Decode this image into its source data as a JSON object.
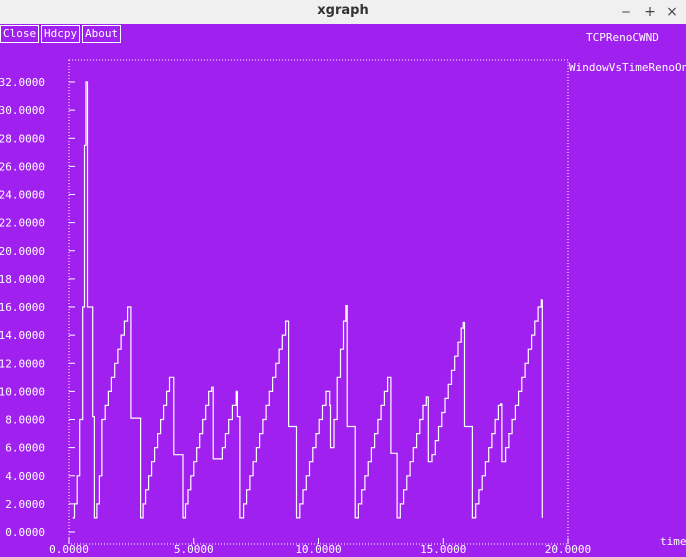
{
  "window": {
    "title": "xgraph"
  },
  "window_controls": {
    "minimize": "‒",
    "maximize": "+",
    "close": "×"
  },
  "toolbar": {
    "close_label": "Close",
    "hdcpy_label": "Hdcpy",
    "about_label": "About"
  },
  "graph": {
    "title": "TCPRenoCWND",
    "legend": "WindowVsTimeRenoOne",
    "xunit": "time"
  },
  "colors": {
    "background": "#a020f0",
    "foreground": "#ffffff"
  },
  "chart_data": {
    "type": "line",
    "title": "TCPRenoCWND",
    "xlabel": "time",
    "ylabel": "",
    "xlim": [
      0,
      20
    ],
    "ylim": [
      0,
      32
    ],
    "grid": true,
    "legend_position": "top-right",
    "x_ticks": [
      "0.0000",
      "5.0000",
      "10.0000",
      "15.0000",
      "20.0000"
    ],
    "y_ticks": [
      "0.0000",
      "2.0000",
      "4.0000",
      "6.0000",
      "8.0000",
      "10.0000",
      "12.0000",
      "14.0000",
      "16.0000",
      "18.0000",
      "20.0000",
      "22.0000",
      "24.0000",
      "26.0000",
      "28.0000",
      "30.0000",
      "32.0000"
    ],
    "series": [
      {
        "name": "WindowVsTimeRenoOne",
        "color": "#ffffff",
        "points": [
          [
            0.15,
            1
          ],
          [
            0.22,
            2
          ],
          [
            0.33,
            4
          ],
          [
            0.43,
            8
          ],
          [
            0.55,
            16
          ],
          [
            0.62,
            27.5
          ],
          [
            0.68,
            32
          ],
          [
            0.74,
            16
          ],
          [
            0.88,
            16
          ],
          [
            0.95,
            8.2
          ],
          [
            1.02,
            1
          ],
          [
            1.12,
            2
          ],
          [
            1.22,
            4
          ],
          [
            1.32,
            8
          ],
          [
            1.45,
            9
          ],
          [
            1.58,
            10
          ],
          [
            1.7,
            11
          ],
          [
            1.83,
            12
          ],
          [
            1.96,
            13
          ],
          [
            2.09,
            14
          ],
          [
            2.22,
            15
          ],
          [
            2.35,
            16
          ],
          [
            2.42,
            16
          ],
          [
            2.48,
            8.1
          ],
          [
            2.8,
            8.1
          ],
          [
            2.87,
            1
          ],
          [
            2.97,
            2
          ],
          [
            3.07,
            3
          ],
          [
            3.19,
            4
          ],
          [
            3.31,
            5
          ],
          [
            3.43,
            6
          ],
          [
            3.55,
            7
          ],
          [
            3.67,
            8
          ],
          [
            3.79,
            9
          ],
          [
            3.91,
            10
          ],
          [
            4.03,
            11
          ],
          [
            4.15,
            11
          ],
          [
            4.2,
            5.5
          ],
          [
            4.5,
            5.5
          ],
          [
            4.57,
            1
          ],
          [
            4.67,
            2
          ],
          [
            4.77,
            3
          ],
          [
            4.88,
            4
          ],
          [
            5.0,
            5
          ],
          [
            5.12,
            6
          ],
          [
            5.24,
            7
          ],
          [
            5.36,
            8
          ],
          [
            5.48,
            9
          ],
          [
            5.6,
            10
          ],
          [
            5.72,
            10.3
          ],
          [
            5.78,
            5.2
          ],
          [
            6.05,
            5.2
          ],
          [
            6.15,
            6
          ],
          [
            6.27,
            7
          ],
          [
            6.4,
            8
          ],
          [
            6.55,
            9
          ],
          [
            6.7,
            10
          ],
          [
            6.75,
            8.2
          ],
          [
            6.85,
            1
          ],
          [
            7.0,
            2
          ],
          [
            7.12,
            3
          ],
          [
            7.25,
            4
          ],
          [
            7.38,
            5
          ],
          [
            7.51,
            6
          ],
          [
            7.64,
            7
          ],
          [
            7.77,
            8
          ],
          [
            7.9,
            9
          ],
          [
            8.03,
            10
          ],
          [
            8.16,
            11
          ],
          [
            8.29,
            12
          ],
          [
            8.42,
            13
          ],
          [
            8.55,
            14
          ],
          [
            8.68,
            15
          ],
          [
            8.75,
            15
          ],
          [
            8.8,
            7.5
          ],
          [
            9.05,
            7.5
          ],
          [
            9.12,
            1
          ],
          [
            9.25,
            2
          ],
          [
            9.38,
            3
          ],
          [
            9.51,
            4
          ],
          [
            9.64,
            5
          ],
          [
            9.77,
            6
          ],
          [
            9.9,
            7
          ],
          [
            10.03,
            8
          ],
          [
            10.16,
            9
          ],
          [
            10.3,
            10
          ],
          [
            10.45,
            9
          ],
          [
            10.48,
            6
          ],
          [
            10.62,
            8
          ],
          [
            10.75,
            11
          ],
          [
            10.88,
            13
          ],
          [
            11.0,
            15
          ],
          [
            11.1,
            16.1
          ],
          [
            11.15,
            7.5
          ],
          [
            11.4,
            7.5
          ],
          [
            11.47,
            1
          ],
          [
            11.6,
            2
          ],
          [
            11.73,
            3
          ],
          [
            11.86,
            4
          ],
          [
            11.99,
            5
          ],
          [
            12.12,
            6
          ],
          [
            12.25,
            7
          ],
          [
            12.38,
            8
          ],
          [
            12.51,
            9
          ],
          [
            12.64,
            10
          ],
          [
            12.77,
            11
          ],
          [
            12.85,
            11
          ],
          [
            12.9,
            5.6
          ],
          [
            13.1,
            5.6
          ],
          [
            13.15,
            1
          ],
          [
            13.28,
            2
          ],
          [
            13.41,
            3
          ],
          [
            13.54,
            4
          ],
          [
            13.67,
            5
          ],
          [
            13.8,
            6
          ],
          [
            13.93,
            7
          ],
          [
            14.06,
            8
          ],
          [
            14.19,
            9
          ],
          [
            14.32,
            9.6
          ],
          [
            14.4,
            5
          ],
          [
            14.55,
            5.5
          ],
          [
            14.68,
            6.5
          ],
          [
            14.81,
            7.5
          ],
          [
            14.94,
            8.5
          ],
          [
            15.07,
            9.5
          ],
          [
            15.2,
            10.5
          ],
          [
            15.33,
            11.5
          ],
          [
            15.46,
            12.5
          ],
          [
            15.59,
            13.5
          ],
          [
            15.72,
            14.5
          ],
          [
            15.8,
            14.9
          ],
          [
            15.85,
            7.5
          ],
          [
            16.1,
            7.5
          ],
          [
            16.17,
            1
          ],
          [
            16.3,
            2
          ],
          [
            16.43,
            3
          ],
          [
            16.56,
            4
          ],
          [
            16.69,
            5
          ],
          [
            16.82,
            6
          ],
          [
            16.95,
            7
          ],
          [
            17.08,
            8
          ],
          [
            17.21,
            9
          ],
          [
            17.3,
            9.1
          ],
          [
            17.35,
            5
          ],
          [
            17.5,
            6
          ],
          [
            17.63,
            7
          ],
          [
            17.76,
            8
          ],
          [
            17.89,
            9
          ],
          [
            18.02,
            10
          ],
          [
            18.15,
            11
          ],
          [
            18.28,
            12
          ],
          [
            18.41,
            13
          ],
          [
            18.54,
            14
          ],
          [
            18.67,
            15
          ],
          [
            18.8,
            16
          ],
          [
            18.93,
            16.5
          ],
          [
            18.97,
            1
          ]
        ]
      }
    ]
  }
}
